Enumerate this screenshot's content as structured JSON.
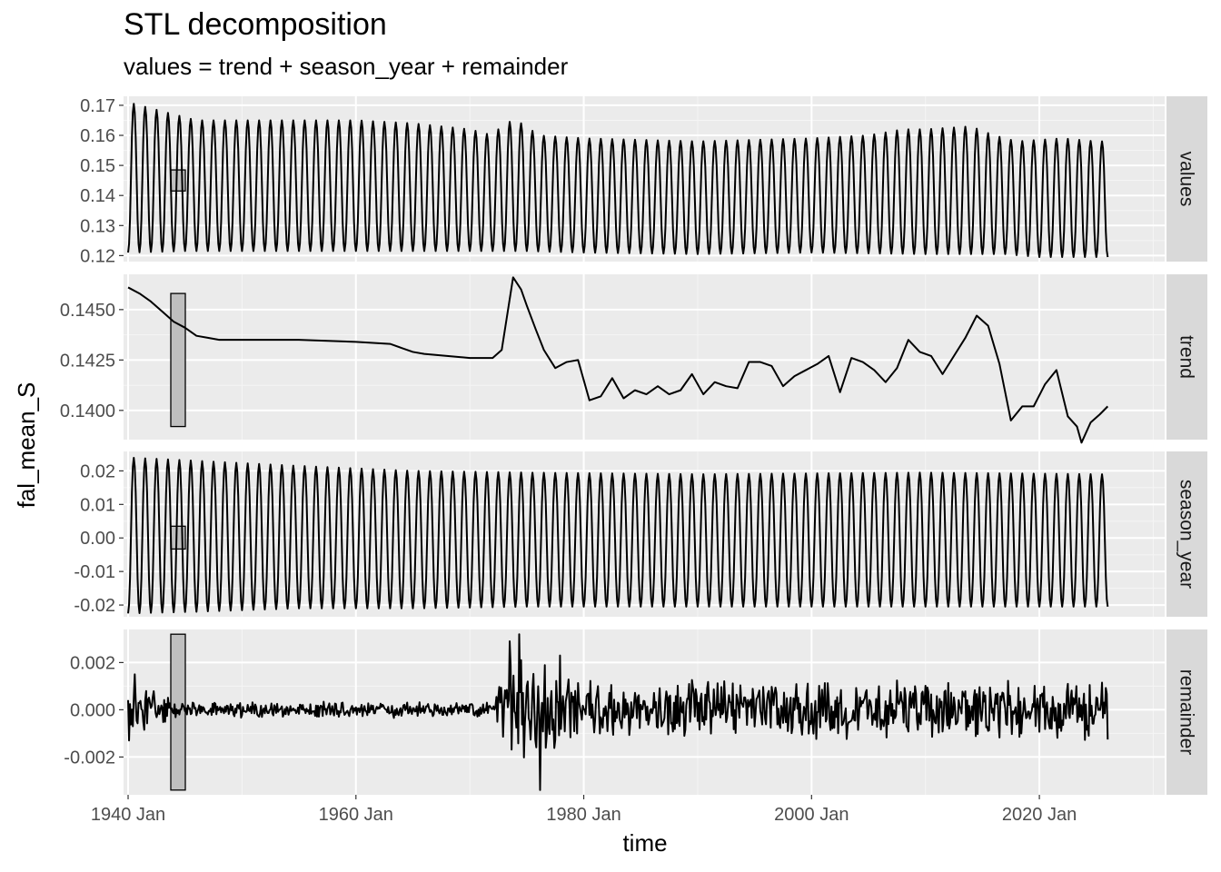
{
  "chart_data": {
    "type": "line",
    "title": "STL decomposition",
    "subtitle": "values = trend + season_year + remainder",
    "xlabel": "time",
    "ylabel": "fal_mean_S",
    "x_ticks": [
      "1940 Jan",
      "1960 Jan",
      "1980 Jan",
      "2000 Jan",
      "2020 Jan"
    ],
    "x_range": [
      1939.6,
      2031
    ],
    "start_year": 1940,
    "end_year": 2026,
    "grid": true,
    "panels": [
      {
        "name": "values",
        "ylim": [
          0.118,
          0.173
        ],
        "y_ticks": [
          "0.12",
          "0.13",
          "0.14",
          "0.15",
          "0.16",
          "0.17"
        ],
        "y_tick_values": [
          0.12,
          0.13,
          0.14,
          0.15,
          0.16,
          0.17
        ],
        "scale_bar": [
          0.1415,
          0.1485
        ],
        "annual_peaks": [
          [
            1940,
            0.171
          ],
          [
            1941,
            0.17
          ],
          [
            1942,
            0.169
          ],
          [
            1943,
            0.168
          ],
          [
            1944,
            0.167
          ],
          [
            1945,
            0.166
          ],
          [
            1946,
            0.165
          ],
          [
            1950,
            0.165
          ],
          [
            1960,
            0.165
          ],
          [
            1965,
            0.164
          ],
          [
            1970,
            0.162
          ],
          [
            1972,
            0.16
          ],
          [
            1973,
            0.164
          ],
          [
            1974,
            0.165
          ],
          [
            1975,
            0.163
          ],
          [
            1976,
            0.16
          ],
          [
            1980,
            0.159
          ],
          [
            1990,
            0.158
          ],
          [
            2000,
            0.159
          ],
          [
            2005,
            0.16
          ],
          [
            2008,
            0.162
          ],
          [
            2010,
            0.162
          ],
          [
            2014,
            0.163
          ],
          [
            2016,
            0.16
          ],
          [
            2018,
            0.158
          ],
          [
            2022,
            0.159
          ],
          [
            2025,
            0.158
          ]
        ],
        "annual_troughs": [
          [
            1940,
            0.121
          ],
          [
            1945,
            0.1215
          ],
          [
            1950,
            0.1215
          ],
          [
            1960,
            0.1215
          ],
          [
            1970,
            0.1215
          ],
          [
            1975,
            0.1215
          ],
          [
            1980,
            0.121
          ],
          [
            1990,
            0.1205
          ],
          [
            2000,
            0.121
          ],
          [
            2010,
            0.1205
          ],
          [
            2017,
            0.1205
          ],
          [
            2020,
            0.1195
          ],
          [
            2025,
            0.1195
          ]
        ]
      },
      {
        "name": "trend",
        "ylim": [
          0.13855,
          0.14675
        ],
        "y_ticks": [
          "0.1400",
          "0.1425",
          "0.1450"
        ],
        "y_tick_values": [
          0.14,
          0.1425,
          0.145
        ],
        "scale_bar": [
          0.1392,
          0.1458
        ],
        "points": [
          [
            1940.0,
            0.1461
          ],
          [
            1941.0,
            0.1458
          ],
          [
            1942.0,
            0.1454
          ],
          [
            1943.0,
            0.1449
          ],
          [
            1944.0,
            0.1444
          ],
          [
            1945.0,
            0.1441
          ],
          [
            1946.0,
            0.1437
          ],
          [
            1947.0,
            0.1436
          ],
          [
            1948.0,
            0.1435
          ],
          [
            1950.0,
            0.1435
          ],
          [
            1955.0,
            0.1435
          ],
          [
            1960.0,
            0.1434
          ],
          [
            1963.0,
            0.1433
          ],
          [
            1964.0,
            0.1431
          ],
          [
            1965.0,
            0.1429
          ],
          [
            1966.0,
            0.1428
          ],
          [
            1968.0,
            0.1427
          ],
          [
            1970.0,
            0.1426
          ],
          [
            1972.0,
            0.1426
          ],
          [
            1972.8,
            0.143
          ],
          [
            1973.8,
            0.1466
          ],
          [
            1974.5,
            0.146
          ],
          [
            1975.0,
            0.1452
          ],
          [
            1975.8,
            0.144
          ],
          [
            1976.5,
            0.143
          ],
          [
            1977.5,
            0.1421
          ],
          [
            1978.5,
            0.1424
          ],
          [
            1979.5,
            0.1425
          ],
          [
            1980.5,
            0.1405
          ],
          [
            1981.5,
            0.1407
          ],
          [
            1982.5,
            0.1416
          ],
          [
            1983.5,
            0.1406
          ],
          [
            1984.5,
            0.141
          ],
          [
            1985.5,
            0.1408
          ],
          [
            1986.5,
            0.1412
          ],
          [
            1987.5,
            0.1408
          ],
          [
            1988.5,
            0.141
          ],
          [
            1989.5,
            0.1418
          ],
          [
            1990.5,
            0.1408
          ],
          [
            1991.5,
            0.1414
          ],
          [
            1992.5,
            0.1412
          ],
          [
            1993.5,
            0.1411
          ],
          [
            1994.5,
            0.1424
          ],
          [
            1995.5,
            0.1424
          ],
          [
            1996.5,
            0.1422
          ],
          [
            1997.5,
            0.1412
          ],
          [
            1998.5,
            0.1417
          ],
          [
            1999.5,
            0.142
          ],
          [
            2000.5,
            0.1423
          ],
          [
            2001.5,
            0.1427
          ],
          [
            2002.5,
            0.1409
          ],
          [
            2003.5,
            0.1426
          ],
          [
            2004.5,
            0.1424
          ],
          [
            2005.5,
            0.142
          ],
          [
            2006.5,
            0.1414
          ],
          [
            2007.5,
            0.1421
          ],
          [
            2008.5,
            0.1435
          ],
          [
            2009.5,
            0.1429
          ],
          [
            2010.5,
            0.1427
          ],
          [
            2011.5,
            0.1418
          ],
          [
            2012.5,
            0.1427
          ],
          [
            2013.5,
            0.1436
          ],
          [
            2014.5,
            0.1447
          ],
          [
            2015.5,
            0.1442
          ],
          [
            2016.5,
            0.1423
          ],
          [
            2017.5,
            0.1395
          ],
          [
            2018.5,
            0.1402
          ],
          [
            2019.5,
            0.1402
          ],
          [
            2020.5,
            0.1413
          ],
          [
            2021.5,
            0.142
          ],
          [
            2022.5,
            0.1397
          ],
          [
            2023.3,
            0.1392
          ],
          [
            2023.7,
            0.1384
          ],
          [
            2024.5,
            0.1394
          ],
          [
            2025.3,
            0.1398
          ],
          [
            2026.0,
            0.1402
          ]
        ]
      },
      {
        "name": "season_year",
        "ylim": [
          -0.0235,
          0.0258
        ],
        "y_ticks": [
          "0.02",
          "0.01",
          "0.00",
          "-0.01",
          "-0.02"
        ],
        "y_tick_values": [
          0.02,
          0.01,
          0.0,
          -0.01,
          -0.02
        ],
        "scale_bar": [
          -0.0033,
          0.0035
        ],
        "annual_peaks": [
          [
            1940,
            0.024
          ],
          [
            1946,
            0.023
          ],
          [
            1955,
            0.0215
          ],
          [
            1965,
            0.02
          ],
          [
            1975,
            0.0195
          ],
          [
            1990,
            0.019
          ],
          [
            2010,
            0.0195
          ],
          [
            2025,
            0.019
          ]
        ],
        "annual_troughs": [
          [
            1940,
            -0.0225
          ],
          [
            1946,
            -0.022
          ],
          [
            1955,
            -0.021
          ],
          [
            1965,
            -0.021
          ],
          [
            1975,
            -0.0205
          ],
          [
            1990,
            -0.0205
          ],
          [
            2010,
            -0.0205
          ],
          [
            2025,
            -0.0205
          ]
        ]
      },
      {
        "name": "remainder",
        "ylim": [
          -0.0036,
          0.0034
        ],
        "y_ticks": [
          "0.002",
          "0.000",
          "-0.002"
        ],
        "y_tick_values": [
          0.002,
          0.0,
          -0.002
        ],
        "scale_bar": [
          -0.0034,
          0.0032
        ],
        "amplitude_by_period": [
          [
            1940,
            0.0012
          ],
          [
            1945,
            0.0003
          ],
          [
            1972,
            0.0003
          ],
          [
            1973.5,
            0.002
          ],
          [
            1976,
            0.002
          ],
          [
            1980,
            0.0011
          ],
          [
            2026,
            0.0011
          ]
        ],
        "notable_points": [
          [
            1940.1,
            -0.0013
          ],
          [
            1940.6,
            0.0015
          ],
          [
            1974.3,
            0.0032
          ],
          [
            1976.2,
            -0.0034
          ],
          [
            1973.5,
            0.0029
          ],
          [
            1977.9,
            0.0023
          ]
        ]
      }
    ]
  }
}
